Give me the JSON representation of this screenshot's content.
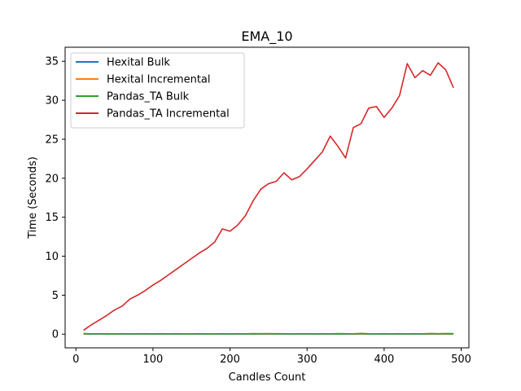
{
  "chart_data": {
    "type": "line",
    "title": "EMA_10",
    "xlabel": "Candles Count",
    "ylabel": "Time (Seconds)",
    "xlim": [
      -14,
      510
    ],
    "ylim": [
      -1.75,
      36.8
    ],
    "xticks": [
      0,
      100,
      200,
      300,
      400,
      500
    ],
    "yticks": [
      0,
      5,
      10,
      15,
      20,
      25,
      30,
      35
    ],
    "legend_position": "top-left",
    "grid": false,
    "series": [
      {
        "name": "Hexital Bulk",
        "color": "#1f77b4",
        "x": [
          10,
          20,
          30,
          40,
          50,
          60,
          70,
          80,
          90,
          100,
          110,
          120,
          130,
          140,
          150,
          160,
          170,
          180,
          190,
          200,
          210,
          220,
          230,
          240,
          250,
          260,
          270,
          280,
          290,
          300,
          310,
          320,
          330,
          340,
          350,
          360,
          370,
          380,
          390,
          400,
          410,
          420,
          430,
          440,
          450,
          460,
          470,
          480,
          490
        ],
        "values": [
          0.02,
          0.02,
          0.02,
          0.02,
          0.02,
          0.02,
          0.02,
          0.02,
          0.02,
          0.02,
          0.02,
          0.02,
          0.02,
          0.02,
          0.02,
          0.02,
          0.02,
          0.02,
          0.02,
          0.02,
          0.02,
          0.02,
          0.02,
          0.02,
          0.02,
          0.02,
          0.02,
          0.02,
          0.02,
          0.02,
          0.02,
          0.02,
          0.02,
          0.02,
          0.02,
          0.02,
          0.02,
          0.02,
          0.02,
          0.02,
          0.02,
          0.02,
          0.02,
          0.02,
          0.02,
          0.02,
          0.02,
          0.02,
          0.02
        ]
      },
      {
        "name": "Hexital Incremental",
        "color": "#ff7f0e",
        "x": [
          10,
          20,
          30,
          40,
          50,
          60,
          70,
          80,
          90,
          100,
          110,
          120,
          130,
          140,
          150,
          160,
          170,
          180,
          190,
          200,
          210,
          220,
          230,
          240,
          250,
          260,
          270,
          280,
          290,
          300,
          310,
          320,
          330,
          340,
          350,
          360,
          370,
          380,
          390,
          400,
          410,
          420,
          430,
          440,
          450,
          460,
          470,
          480,
          490
        ],
        "values": [
          0.05,
          0.05,
          0.05,
          0.05,
          0.05,
          0.05,
          0.05,
          0.05,
          0.05,
          0.05,
          0.05,
          0.05,
          0.05,
          0.05,
          0.05,
          0.05,
          0.05,
          0.05,
          0.05,
          0.05,
          0.05,
          0.05,
          0.05,
          0.05,
          0.05,
          0.05,
          0.05,
          0.05,
          0.05,
          0.05,
          0.05,
          0.05,
          0.05,
          0.05,
          0.05,
          0.05,
          0.05,
          0.05,
          0.05,
          0.05,
          0.05,
          0.05,
          0.05,
          0.05,
          0.05,
          0.05,
          0.05,
          0.05,
          0.05
        ]
      },
      {
        "name": "Pandas_TA Bulk",
        "color": "#2ca02c",
        "x": [
          10,
          20,
          30,
          40,
          50,
          60,
          70,
          80,
          90,
          100,
          110,
          120,
          130,
          140,
          150,
          160,
          170,
          180,
          190,
          200,
          210,
          220,
          230,
          240,
          250,
          260,
          270,
          280,
          290,
          300,
          310,
          320,
          330,
          340,
          350,
          360,
          370,
          380,
          390,
          400,
          410,
          420,
          430,
          440,
          450,
          460,
          470,
          480,
          490
        ],
        "values": [
          0.08,
          0.05,
          0.06,
          0.05,
          0.05,
          0.06,
          0.05,
          0.06,
          0.06,
          0.05,
          0.06,
          0.05,
          0.06,
          0.05,
          0.05,
          0.06,
          0.05,
          0.05,
          0.06,
          0.05,
          0.06,
          0.05,
          0.07,
          0.06,
          0.07,
          0.06,
          0.06,
          0.05,
          0.06,
          0.06,
          0.05,
          0.06,
          0.05,
          0.07,
          0.06,
          0.05,
          0.1,
          0.06,
          0.05,
          0.06,
          0.05,
          0.06,
          0.05,
          0.06,
          0.05,
          0.08,
          0.06,
          0.09,
          0.07
        ]
      },
      {
        "name": "Pandas_TA Incremental",
        "color": "#d62728",
        "x": [
          10,
          20,
          30,
          40,
          50,
          60,
          70,
          80,
          90,
          100,
          110,
          120,
          130,
          140,
          150,
          160,
          170,
          180,
          190,
          200,
          210,
          220,
          230,
          240,
          250,
          260,
          270,
          280,
          290,
          300,
          310,
          320,
          330,
          340,
          350,
          360,
          370,
          380,
          390,
          400,
          410,
          420,
          430,
          440,
          450,
          460,
          470,
          480,
          490
        ],
        "values": [
          0.5,
          1.2,
          1.8,
          2.4,
          3.1,
          3.6,
          4.5,
          5.0,
          5.6,
          6.3,
          6.9,
          7.6,
          8.3,
          9.0,
          9.7,
          10.4,
          11.0,
          11.8,
          13.5,
          13.2,
          14.0,
          15.2,
          17.1,
          18.6,
          19.3,
          19.6,
          20.7,
          19.8,
          20.2,
          21.2,
          22.3,
          23.4,
          25.4,
          24.1,
          22.6,
          26.5,
          27.0,
          29.0,
          29.2,
          27.8,
          29.0,
          30.6,
          34.7,
          32.9,
          33.8,
          33.2,
          34.8,
          33.9,
          31.6
        ]
      }
    ]
  }
}
